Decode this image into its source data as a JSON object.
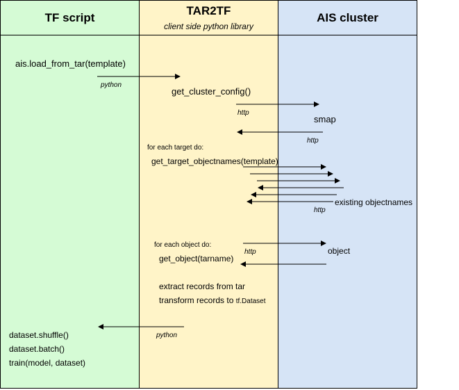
{
  "colors": {
    "tf_lane": "#d5fbd5",
    "tar_lane": "#fff4c8",
    "ais_lane": "#d6e4f6",
    "line": "#000000"
  },
  "lanes": {
    "tf": {
      "title": "TF script"
    },
    "tar": {
      "title": "TAR2TF",
      "subtitle": "client side python library"
    },
    "ais": {
      "title": "AIS cluster"
    }
  },
  "labels": {
    "load_call": "ais.load_from_tar(template)",
    "python_1": "python",
    "get_cluster_config": "get_cluster_config()",
    "http_1": "http",
    "smap": "smap",
    "http_2": "http",
    "for_each_target": "for each target do:",
    "get_target_objectnames": "get_target_objectnames(template)",
    "existing_objectnames": "existing objectnames",
    "http_3": "http",
    "for_each_object": "for each object do:",
    "http_4": "http",
    "get_object": "get_object(tarname)",
    "object": "object",
    "extract_records": "extract records from tar",
    "transform_records": "transform records to ",
    "tf_dataset": "tf.Dataset",
    "python_2": "python",
    "shuffle": "dataset.shuffle()",
    "batch": "dataset.batch()",
    "train": "train(model, dataset)"
  }
}
